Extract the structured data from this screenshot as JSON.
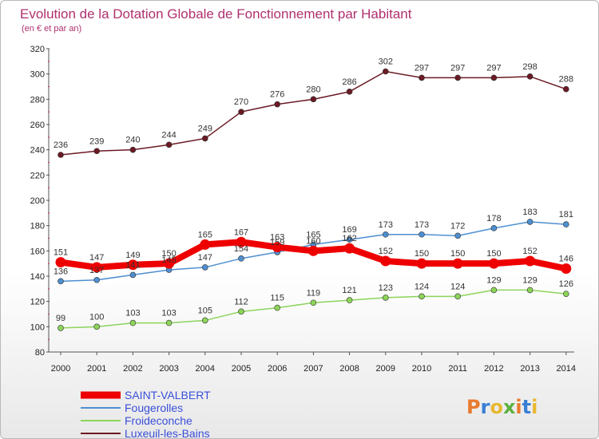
{
  "chart_data": {
    "type": "line",
    "title": "Evolution de la Dotation Globale de Fonctionnement par Habitant",
    "subtitle": "(en € et par an)",
    "x": [
      "2000",
      "2001",
      "2002",
      "2003",
      "2004",
      "2005",
      "2006",
      "2007",
      "2008",
      "2009",
      "2010",
      "2011",
      "2012",
      "2013",
      "2014"
    ],
    "ylim": [
      80,
      320
    ],
    "yticks": [
      "80",
      "100",
      "120",
      "140",
      "160",
      "180",
      "200",
      "220",
      "240",
      "260",
      "280",
      "300",
      "320"
    ],
    "grid": false,
    "legend_position": "bottom-left",
    "series": [
      {
        "name": "Luxeuil-les-Bains",
        "color": "#6b1a24",
        "values": [
          236,
          239,
          240,
          244,
          249,
          270,
          276,
          280,
          286,
          302,
          297,
          297,
          297,
          298,
          288
        ]
      },
      {
        "name": "Fougerolles",
        "color": "#4e8fd0",
        "values": [
          136,
          137,
          141,
          145,
          147,
          154,
          159,
          165,
          169,
          173,
          173,
          172,
          178,
          183,
          181
        ]
      },
      {
        "name": "Froideconche",
        "color": "#8cd45a",
        "values": [
          99,
          100,
          103,
          103,
          105,
          112,
          115,
          119,
          121,
          123,
          124,
          124,
          129,
          129,
          126
        ]
      },
      {
        "name": "SAINT-VALBERT",
        "color": "#ee0000",
        "values": [
          151,
          147,
          149,
          150,
          165,
          167,
          163,
          160,
          162,
          152,
          150,
          150,
          150,
          152,
          146
        ]
      }
    ],
    "data_labels": {
      "Luxeuil-les-Bains": [
        "236",
        "239",
        "240",
        "244",
        "249",
        "270",
        "276",
        "280",
        "286",
        "302",
        "297",
        "297",
        "297",
        "298",
        "288"
      ],
      "Fougerolles": [
        "136",
        "137",
        "141",
        "145",
        "147",
        "154",
        "159",
        "165",
        "169",
        "173",
        "173",
        "172",
        "178",
        "183",
        "181"
      ],
      "Froideconche": [
        "99",
        "100",
        "103",
        "103",
        "105",
        "112",
        "115",
        "119",
        "121",
        "123",
        "124",
        "124",
        "129",
        "129",
        "126"
      ],
      "SAINT-VALBERT": [
        "151",
        "147",
        "149",
        "150",
        "165",
        "167",
        "163",
        "160",
        "162",
        "152",
        "150",
        "150",
        "150",
        "152",
        "146"
      ]
    },
    "legend": [
      "SAINT-VALBERT",
      "Fougerolles",
      "Froideconche",
      "Luxeuil-les-Bains"
    ]
  },
  "logo": {
    "text": "Proxiti",
    "colors": [
      "#e87a2e",
      "#3a7fd4",
      "#e8b830",
      "#5cb040"
    ]
  }
}
